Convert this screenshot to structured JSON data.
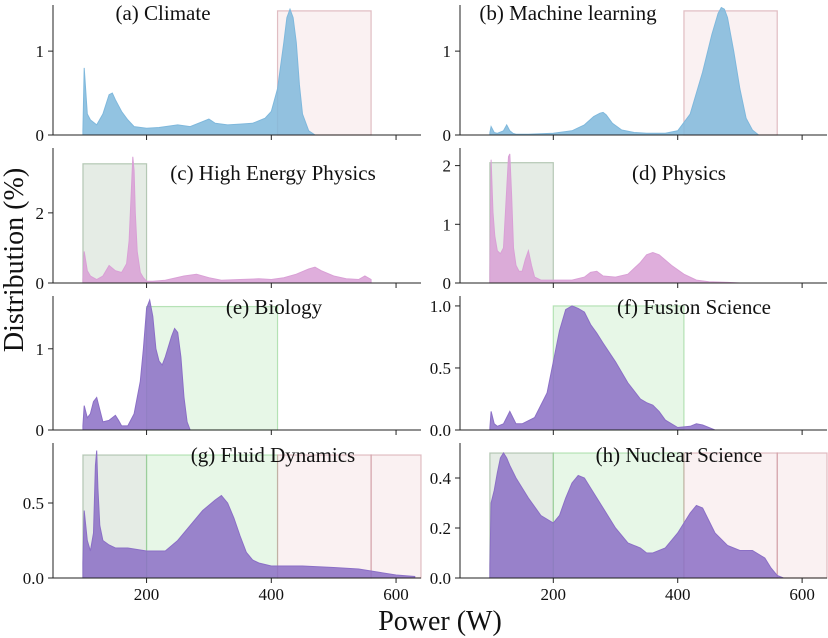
{
  "figure": {
    "xlabel": "Power (W)",
    "ylabel": "Distribution (%)"
  },
  "style": {
    "red_band": "#c48a8f",
    "grey_band": "#8aa08a",
    "green_band": "#8fd98f"
  },
  "chart_data": [
    {
      "type": "area",
      "title": "(a) Climate",
      "color": "#7fb8dc",
      "xlim": [
        50,
        640
      ],
      "ylim": [
        0,
        1.55
      ],
      "yticks": [
        0,
        1
      ],
      "xticks": [
        200,
        400,
        600
      ],
      "show_x_tick_labels": false,
      "x": [
        98,
        100,
        105,
        110,
        120,
        130,
        140,
        145,
        150,
        160,
        170,
        180,
        200,
        220,
        250,
        270,
        290,
        300,
        310,
        330,
        350,
        370,
        390,
        400,
        410,
        420,
        425,
        430,
        435,
        440,
        445,
        450,
        460,
        470
      ],
      "values": [
        0.05,
        0.8,
        0.25,
        0.18,
        0.12,
        0.25,
        0.48,
        0.5,
        0.42,
        0.28,
        0.18,
        0.1,
        0.08,
        0.09,
        0.12,
        0.1,
        0.16,
        0.19,
        0.14,
        0.12,
        0.13,
        0.14,
        0.2,
        0.28,
        0.55,
        1.1,
        1.4,
        1.5,
        1.4,
        1.1,
        0.6,
        0.25,
        0.05,
        0
      ],
      "bands": [
        {
          "from": 410,
          "to": 560,
          "color": "red",
          "ymax": 1.48
        }
      ]
    },
    {
      "type": "area",
      "title": "(b) Machine learning",
      "color": "#7fb8dc",
      "xlim": [
        50,
        640
      ],
      "ylim": [
        0,
        1.55
      ],
      "yticks": [
        0,
        1
      ],
      "xticks": [
        200,
        400,
        600
      ],
      "show_x_tick_labels": false,
      "x": [
        98,
        100,
        105,
        110,
        120,
        125,
        130,
        135,
        140,
        160,
        200,
        230,
        250,
        265,
        275,
        280,
        285,
        295,
        310,
        330,
        350,
        380,
        400,
        420,
        440,
        455,
        465,
        470,
        475,
        480,
        490,
        500,
        510,
        520,
        530
      ],
      "values": [
        0.03,
        0.1,
        0.03,
        0.02,
        0.05,
        0.12,
        0.05,
        0.02,
        0.01,
        0.01,
        0.02,
        0.05,
        0.12,
        0.22,
        0.26,
        0.27,
        0.24,
        0.14,
        0.06,
        0.03,
        0.02,
        0.02,
        0.05,
        0.25,
        0.75,
        1.2,
        1.45,
        1.52,
        1.5,
        1.4,
        1.0,
        0.55,
        0.2,
        0.06,
        0
      ],
      "bands": [
        {
          "from": 410,
          "to": 560,
          "color": "red",
          "ymax": 1.48
        }
      ]
    },
    {
      "type": "area",
      "title": "(c) High Energy Physics",
      "color": "#d9a0d6",
      "xlim": [
        50,
        640
      ],
      "ylim": [
        0,
        3.85
      ],
      "yticks": [
        0,
        2
      ],
      "xticks": [
        200,
        400,
        600
      ],
      "show_x_tick_labels": false,
      "x": [
        98,
        100,
        105,
        110,
        120,
        130,
        140,
        150,
        160,
        168,
        172,
        176,
        178,
        180,
        182,
        185,
        190,
        195,
        200,
        210,
        230,
        260,
        280,
        300,
        320,
        350,
        380,
        400,
        420,
        440,
        460,
        470,
        480,
        500,
        520,
        540,
        550,
        560
      ],
      "values": [
        0.1,
        0.9,
        0.35,
        0.2,
        0.1,
        0.2,
        0.5,
        0.35,
        0.3,
        0.55,
        1.2,
        2.8,
        3.6,
        3.2,
        2.0,
        0.9,
        0.3,
        0.15,
        0.05,
        0.05,
        0.08,
        0.2,
        0.25,
        0.15,
        0.08,
        0.1,
        0.12,
        0.1,
        0.15,
        0.25,
        0.4,
        0.45,
        0.35,
        0.2,
        0.12,
        0.1,
        0.2,
        0.1
      ],
      "bands": [
        {
          "from": 98,
          "to": 200,
          "color": "grey",
          "ymax": 3.4
        }
      ]
    },
    {
      "type": "area",
      "title": "(d) Physics",
      "color": "#d9a0d6",
      "xlim": [
        50,
        640
      ],
      "ylim": [
        0,
        2.3
      ],
      "yticks": [
        0,
        1,
        2
      ],
      "xticks": [
        200,
        400,
        600
      ],
      "show_x_tick_labels": false,
      "x": [
        98,
        100,
        103,
        106,
        110,
        115,
        120,
        125,
        128,
        130,
        133,
        136,
        140,
        145,
        150,
        155,
        160,
        165,
        170,
        180,
        200,
        230,
        250,
        260,
        270,
        280,
        300,
        320,
        340,
        350,
        360,
        370,
        390,
        410,
        430,
        450,
        480,
        500
      ],
      "values": [
        0.2,
        2.1,
        1.2,
        0.8,
        0.55,
        0.5,
        0.6,
        1.6,
        2.15,
        2.2,
        1.5,
        0.6,
        0.3,
        0.2,
        0.2,
        0.4,
        0.55,
        0.3,
        0.1,
        0.05,
        0.05,
        0.05,
        0.1,
        0.18,
        0.2,
        0.12,
        0.1,
        0.15,
        0.35,
        0.48,
        0.52,
        0.48,
        0.3,
        0.15,
        0.05,
        0.02,
        0.01,
        0
      ],
      "bands": [
        {
          "from": 98,
          "to": 200,
          "color": "grey",
          "ymax": 2.05
        }
      ]
    },
    {
      "type": "area",
      "title": "(e) Biology",
      "color": "#8b6fc6",
      "xlim": [
        50,
        640
      ],
      "ylim": [
        0,
        1.65
      ],
      "yticks": [
        0,
        1
      ],
      "xticks": [
        200,
        400,
        600
      ],
      "show_x_tick_labels": false,
      "x": [
        98,
        100,
        105,
        110,
        115,
        120,
        125,
        130,
        140,
        150,
        155,
        160,
        170,
        180,
        190,
        195,
        200,
        205,
        210,
        215,
        220,
        225,
        230,
        240,
        245,
        250,
        255,
        260,
        265,
        270
      ],
      "values": [
        0.05,
        0.3,
        0.15,
        0.2,
        0.35,
        0.4,
        0.25,
        0.1,
        0.12,
        0.18,
        0.12,
        0.05,
        0.05,
        0.2,
        0.6,
        1.0,
        1.5,
        1.6,
        1.4,
        1.0,
        0.85,
        0.8,
        0.9,
        1.15,
        1.25,
        1.2,
        0.9,
        0.4,
        0.1,
        0
      ],
      "bands": [
        {
          "from": 200,
          "to": 410,
          "color": "green",
          "ymax": 1.52
        }
      ]
    },
    {
      "type": "area",
      "title": "(f) Fusion Science",
      "color": "#8b6fc6",
      "xlim": [
        50,
        640
      ],
      "ylim": [
        0,
        1.08
      ],
      "yticks": [
        0.0,
        0.5,
        1.0
      ],
      "xticks": [
        200,
        400,
        600
      ],
      "show_x_tick_labels": false,
      "x": [
        98,
        100,
        105,
        110,
        120,
        130,
        135,
        140,
        150,
        170,
        190,
        200,
        210,
        220,
        230,
        240,
        250,
        260,
        270,
        280,
        300,
        320,
        340,
        350,
        360,
        370,
        380,
        400,
        420,
        430,
        440,
        450,
        460
      ],
      "values": [
        0.02,
        0.15,
        0.05,
        0.03,
        0.05,
        0.15,
        0.1,
        0.05,
        0.05,
        0.1,
        0.3,
        0.55,
        0.8,
        0.97,
        1.0,
        0.98,
        0.95,
        0.85,
        0.78,
        0.7,
        0.55,
        0.38,
        0.25,
        0.22,
        0.2,
        0.15,
        0.08,
        0.02,
        0.03,
        0.05,
        0.04,
        0.02,
        0
      ],
      "bands": [
        {
          "from": 200,
          "to": 410,
          "color": "green",
          "ymax": 1.0
        }
      ]
    },
    {
      "type": "area",
      "title": "(g) Fluid Dynamics",
      "color": "#8b6fc6",
      "xlim": [
        50,
        640
      ],
      "ylim": [
        0,
        0.9
      ],
      "yticks": [
        0.0,
        0.5
      ],
      "xticks": [
        200,
        400,
        600
      ],
      "show_x_tick_labels": true,
      "x": [
        98,
        100,
        105,
        110,
        115,
        118,
        120,
        122,
        125,
        130,
        140,
        150,
        170,
        200,
        230,
        250,
        270,
        290,
        310,
        320,
        330,
        340,
        350,
        360,
        370,
        380,
        400,
        450,
        500,
        540,
        570,
        600,
        630
      ],
      "values": [
        0.1,
        0.45,
        0.25,
        0.18,
        0.3,
        0.75,
        0.85,
        0.6,
        0.35,
        0.25,
        0.22,
        0.2,
        0.2,
        0.18,
        0.18,
        0.25,
        0.35,
        0.45,
        0.52,
        0.55,
        0.5,
        0.4,
        0.28,
        0.17,
        0.12,
        0.1,
        0.08,
        0.08,
        0.07,
        0.06,
        0.04,
        0.02,
        0.01
      ],
      "bands": [
        {
          "from": 98,
          "to": 200,
          "color": "grey",
          "ymax": 0.82
        },
        {
          "from": 200,
          "to": 410,
          "color": "green",
          "ymax": 0.82
        },
        {
          "from": 410,
          "to": 560,
          "color": "red",
          "ymax": 0.82
        },
        {
          "from": 560,
          "to": 640,
          "color": "red",
          "ymax": 0.82
        }
      ]
    },
    {
      "type": "area",
      "title": "(h) Nuclear Science",
      "color": "#8b6fc6",
      "xlim": [
        50,
        640
      ],
      "ylim": [
        0,
        0.54
      ],
      "yticks": [
        0.0,
        0.2,
        0.4
      ],
      "xticks": [
        200,
        400,
        600
      ],
      "show_x_tick_labels": true,
      "x": [
        98,
        100,
        105,
        110,
        115,
        120,
        125,
        130,
        140,
        160,
        180,
        200,
        210,
        220,
        230,
        240,
        250,
        260,
        280,
        300,
        320,
        340,
        350,
        360,
        380,
        400,
        420,
        430,
        440,
        460,
        480,
        500,
        520,
        540,
        550,
        560,
        570
      ],
      "values": [
        0.05,
        0.3,
        0.35,
        0.42,
        0.48,
        0.5,
        0.48,
        0.45,
        0.4,
        0.32,
        0.25,
        0.22,
        0.25,
        0.32,
        0.38,
        0.41,
        0.4,
        0.36,
        0.28,
        0.2,
        0.14,
        0.12,
        0.1,
        0.1,
        0.12,
        0.18,
        0.26,
        0.29,
        0.28,
        0.18,
        0.13,
        0.11,
        0.11,
        0.08,
        0.04,
        0.01,
        0
      ],
      "bands": [
        {
          "from": 98,
          "to": 200,
          "color": "grey",
          "ymax": 0.5
        },
        {
          "from": 200,
          "to": 410,
          "color": "green",
          "ymax": 0.5
        },
        {
          "from": 410,
          "to": 560,
          "color": "red",
          "ymax": 0.5
        },
        {
          "from": 560,
          "to": 640,
          "color": "red",
          "ymax": 0.5
        }
      ]
    }
  ]
}
